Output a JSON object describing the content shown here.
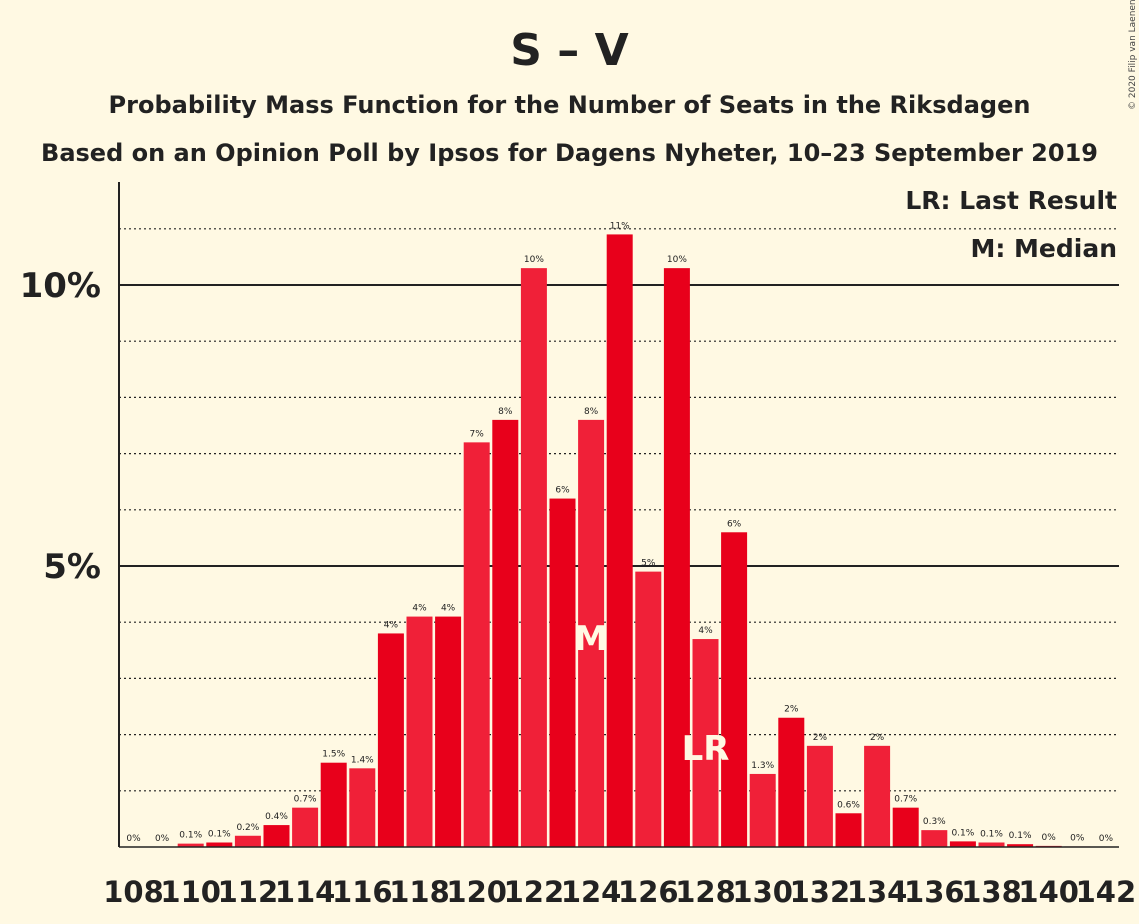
{
  "chart_data": {
    "type": "bar",
    "title": "S – V",
    "subtitle": "Probability Mass Function for the Number of Seats in the Riksdagen",
    "subtitle2": "Based on an Opinion Poll by Ipsos for Dagens Nyheter, 10–23 September 2019",
    "copyright": "© 2020 Filip van Laenen",
    "legend": {
      "last_result": "LR: Last Result",
      "median": "M: Median",
      "placement": "top-right"
    },
    "ylim": [
      0,
      11.8
    ],
    "y_ticks": [
      {
        "value": 5,
        "label": "5%"
      },
      {
        "value": 10,
        "label": "10%"
      }
    ],
    "gridlines": {
      "solid": [
        5,
        10
      ],
      "dotted": [
        1,
        2,
        3,
        4,
        6,
        7,
        8,
        9,
        11
      ]
    },
    "x_tick_labels": [
      "108",
      "110",
      "112",
      "114",
      "116",
      "118",
      "120",
      "122",
      "124",
      "126",
      "128",
      "130",
      "132",
      "134",
      "136",
      "138",
      "140",
      "142"
    ],
    "colors": {
      "odd": "#e8001b",
      "even": "#f02038",
      "axis": "#222222",
      "background": "#fff9e3"
    },
    "median_seat": 124,
    "last_result_seat": 128,
    "categories": [
      108,
      109,
      110,
      111,
      112,
      113,
      114,
      115,
      116,
      117,
      118,
      119,
      120,
      121,
      122,
      123,
      124,
      125,
      126,
      127,
      128,
      129,
      130,
      131,
      132,
      133,
      134,
      135,
      136,
      137,
      138,
      139,
      140,
      141,
      142
    ],
    "values": [
      0,
      0,
      0.06,
      0.08,
      0.2,
      0.39,
      0.7,
      1.5,
      1.4,
      3.8,
      4.1,
      4.1,
      7.2,
      7.6,
      10.3,
      6.2,
      7.6,
      10.9,
      4.9,
      10.3,
      3.7,
      5.6,
      1.3,
      2.3,
      1.8,
      0.6,
      1.8,
      0.7,
      0.3,
      0.1,
      0.08,
      0.05,
      0.02,
      0.01,
      0
    ],
    "data_labels": [
      "0%",
      "0%",
      "0.1%",
      "0.1%",
      "0.2%",
      "0.4%",
      "0.7%",
      "1.5%",
      "1.4%",
      "4%",
      "4%",
      "4%",
      "7%",
      "8%",
      "10%",
      "6%",
      "8%",
      "11%",
      "5%",
      "10%",
      "4%",
      "6%",
      "1.3%",
      "2%",
      "2%",
      "0.6%",
      "2%",
      "0.7%",
      "0.3%",
      "0.1%",
      "0.1%",
      "0.1%",
      "0%",
      "0%",
      "0%"
    ]
  }
}
